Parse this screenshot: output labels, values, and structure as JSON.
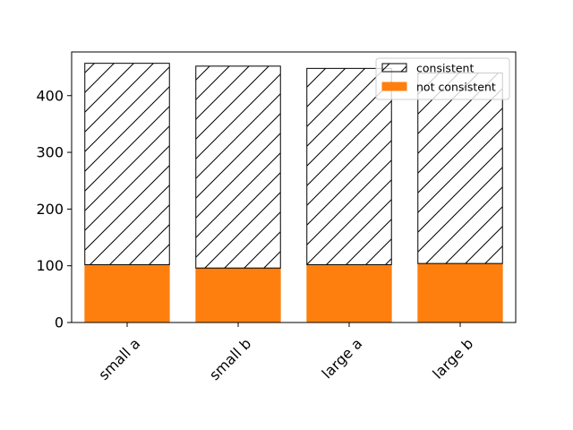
{
  "chart_data": {
    "type": "bar",
    "stacked": true,
    "categories": [
      "small a",
      "small b",
      "large a",
      "large b"
    ],
    "series": [
      {
        "name": "not consistent",
        "values": [
          102,
          96,
          102,
          104
        ],
        "color": "#ff7f0e"
      },
      {
        "name": "consistent",
        "values": [
          355,
          356,
          346,
          336
        ],
        "color": "#ffffff",
        "hatch": "diagonal",
        "edgecolor": "#000000"
      }
    ],
    "title": "",
    "xlabel": "",
    "ylabel": "",
    "ylim": [
      0,
      477
    ],
    "yticks": [
      0,
      100,
      200,
      300,
      400
    ],
    "ytick_labels": [
      "0",
      "100",
      "200",
      "300",
      "400"
    ],
    "xtick_rotation": 45,
    "grid": false,
    "legend": {
      "position": "top-right",
      "entries": [
        "consistent",
        "not consistent"
      ]
    }
  }
}
